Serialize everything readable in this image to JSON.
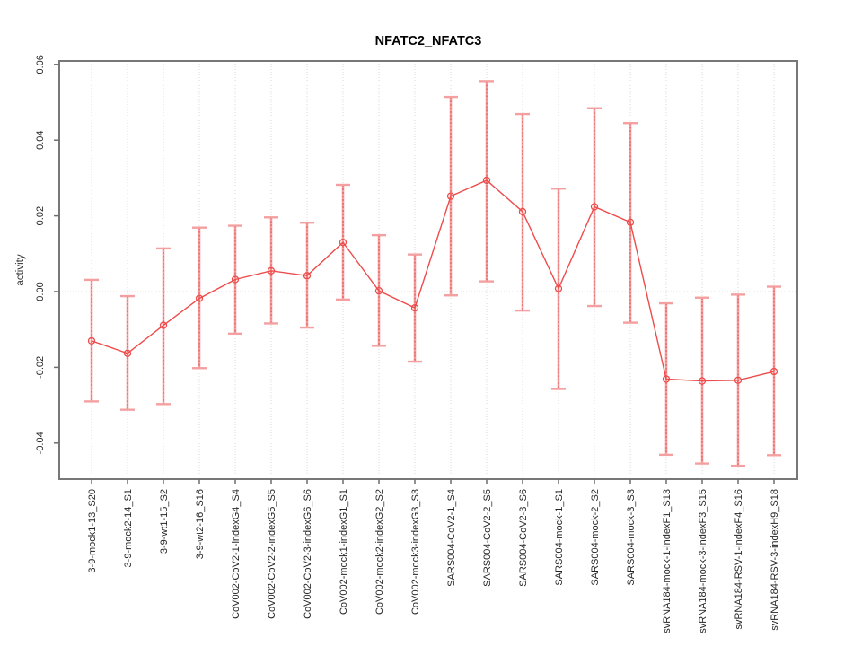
{
  "chart_data": {
    "type": "line",
    "title": "NFATC2_NFATC3",
    "xlabel": "",
    "ylabel": "activity",
    "ylim": [
      -0.05,
      0.061
    ],
    "ytick_values": [
      0.06,
      0.04,
      0.02,
      0.0,
      -0.02,
      -0.04
    ],
    "ytick_labels": [
      "0.06",
      "0.04",
      "0.02",
      "0.00",
      "-0.02",
      "-0.04"
    ],
    "grid": "vertical dotted gridline at each category; dotted horizontal reference line at y=0",
    "legend": "none",
    "marker": "open-circle",
    "categories": [
      "3-9-mock1-13_S20",
      "3-9-mock2-14_S1",
      "3-9-wt1-15_S2",
      "3-9-wt2-16_S16",
      "CoV002-CoV2-1-indexG4_S4",
      "CoV002-CoV2-2-indexG5_S5",
      "CoV002-CoV2-3-indexG6_S6",
      "CoV002-mock1-indexG1_S1",
      "CoV002-mock2-indexG2_S2",
      "CoV002-mock3-indexG3_S3",
      "SARS004-CoV2-1_S4",
      "SARS004-CoV2-2_S5",
      "SARS004-CoV2-3_S6",
      "SARS004-mock-1_S1",
      "SARS004-mock-2_S2",
      "SARS004-mock-3_S3",
      "svRNA184-mock-1-indexF1_S13",
      "svRNA184-mock-3-indexF3_S15",
      "svRNA184-RSV-1-indexF4_S16",
      "svRNA184-RSV-3-indexH9_S18"
    ],
    "series": [
      {
        "name": "activity",
        "values": [
          -0.013,
          -0.0163,
          -0.0089,
          -0.0018,
          0.0032,
          0.0055,
          0.0042,
          0.013,
          0.0002,
          -0.0043,
          0.0252,
          0.0294,
          0.0211,
          0.0008,
          0.0224,
          0.0183,
          -0.0231,
          -0.0236,
          -0.0234,
          -0.0211
        ],
        "upper": [
          0.0031,
          -0.0012,
          0.0114,
          0.0169,
          0.0174,
          0.0196,
          0.0182,
          0.0282,
          0.0149,
          0.0098,
          0.0514,
          0.0556,
          0.0469,
          0.0272,
          0.0484,
          0.0445,
          -0.0031,
          -0.0016,
          -0.0008,
          0.0013
        ],
        "lower": [
          -0.029,
          -0.0312,
          -0.0297,
          -0.0202,
          -0.0111,
          -0.0084,
          -0.0095,
          -0.0021,
          -0.0143,
          -0.0185,
          -0.001,
          0.0027,
          -0.005,
          -0.0257,
          -0.0038,
          -0.0082,
          -0.0431,
          -0.0454,
          -0.046,
          -0.0432
        ]
      }
    ],
    "colors": {
      "series_line": "#ee4b4b",
      "marker_stroke": "#ee4b4b",
      "error_bar_pale": "#f5a0a0",
      "error_bar_core": "#e04b4b",
      "gridline": "#d9d9d9",
      "zero_line": "#d9d9d9",
      "frame": "#777777",
      "tick": "#6e6e6e"
    }
  }
}
